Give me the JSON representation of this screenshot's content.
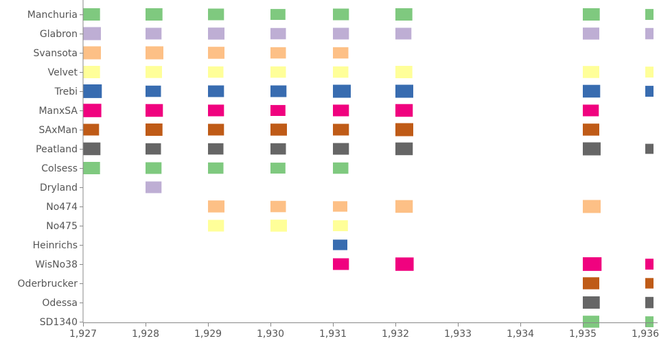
{
  "chart_data": {
    "type": "scatter",
    "title": "",
    "xlabel": "",
    "ylabel": "",
    "xlim": [
      1927,
      1936
    ],
    "x_ticks": [
      {
        "value": 1927,
        "label": "1,927"
      },
      {
        "value": 1928,
        "label": "1,928"
      },
      {
        "value": 1929,
        "label": "1,929"
      },
      {
        "value": 1930,
        "label": "1,930"
      },
      {
        "value": 1931,
        "label": "1,931"
      },
      {
        "value": 1932,
        "label": "1,932"
      },
      {
        "value": 1933,
        "label": "1,933"
      },
      {
        "value": 1934,
        "label": "1,934"
      },
      {
        "value": 1935,
        "label": "1,935"
      },
      {
        "value": 1936,
        "label": "1,936"
      }
    ],
    "categories": [
      "Manchuria",
      "Glabron",
      "Svansota",
      "Velvet",
      "Trebi",
      "ManxSA",
      "SAxMan",
      "Peatland",
      "Colsess",
      "Dryland",
      "No474",
      "No475",
      "Heinrichs",
      "WisNo38",
      "Oderbrucker",
      "Odessa",
      "SD1340"
    ],
    "category_colors": [
      "#7fc97f",
      "#beaed4",
      "#fdc086",
      "#ffff99",
      "#386cb0",
      "#f0027f",
      "#bf5b17",
      "#666666",
      "#7fc97f",
      "#beaed4",
      "#fdc086",
      "#ffff99",
      "#386cb0",
      "#f0027f",
      "#bf5b17",
      "#666666",
      "#7fc97f"
    ],
    "mark_size_unit": "relative",
    "points": [
      {
        "variety": "Manchuria",
        "year": 1927,
        "size": 0.9
      },
      {
        "variety": "Manchuria",
        "year": 1928,
        "size": 0.9
      },
      {
        "variety": "Manchuria",
        "year": 1929,
        "size": 0.8
      },
      {
        "variety": "Manchuria",
        "year": 1930,
        "size": 0.7
      },
      {
        "variety": "Manchuria",
        "year": 1931,
        "size": 0.8
      },
      {
        "variety": "Manchuria",
        "year": 1932,
        "size": 0.9
      },
      {
        "variety": "Manchuria",
        "year": 1935,
        "size": 0.9
      },
      {
        "variety": "Manchuria",
        "year": 1936,
        "size": 0.7
      },
      {
        "variety": "Glabron",
        "year": 1927,
        "size": 1.0
      },
      {
        "variety": "Glabron",
        "year": 1928,
        "size": 0.8
      },
      {
        "variety": "Glabron",
        "year": 1929,
        "size": 0.85
      },
      {
        "variety": "Glabron",
        "year": 1930,
        "size": 0.75
      },
      {
        "variety": "Glabron",
        "year": 1931,
        "size": 0.8
      },
      {
        "variety": "Glabron",
        "year": 1932,
        "size": 0.8
      },
      {
        "variety": "Glabron",
        "year": 1935,
        "size": 0.85
      },
      {
        "variety": "Glabron",
        "year": 1936,
        "size": 0.75
      },
      {
        "variety": "Svansota",
        "year": 1927,
        "size": 1.0
      },
      {
        "variety": "Svansota",
        "year": 1928,
        "size": 1.0
      },
      {
        "variety": "Svansota",
        "year": 1929,
        "size": 0.85
      },
      {
        "variety": "Svansota",
        "year": 1930,
        "size": 0.75
      },
      {
        "variety": "Svansota",
        "year": 1931,
        "size": 0.75
      },
      {
        "variety": "Velvet",
        "year": 1927,
        "size": 0.9
      },
      {
        "variety": "Velvet",
        "year": 1928,
        "size": 0.85
      },
      {
        "variety": "Velvet",
        "year": 1929,
        "size": 0.75
      },
      {
        "variety": "Velvet",
        "year": 1930,
        "size": 0.75
      },
      {
        "variety": "Velvet",
        "year": 1931,
        "size": 0.75
      },
      {
        "variety": "Velvet",
        "year": 1932,
        "size": 0.9
      },
      {
        "variety": "Velvet",
        "year": 1935,
        "size": 0.85
      },
      {
        "variety": "Velvet",
        "year": 1936,
        "size": 0.7
      },
      {
        "variety": "Trebi",
        "year": 1927,
        "size": 1.1
      },
      {
        "variety": "Trebi",
        "year": 1928,
        "size": 0.75
      },
      {
        "variety": "Trebi",
        "year": 1929,
        "size": 0.8
      },
      {
        "variety": "Trebi",
        "year": 1930,
        "size": 0.8
      },
      {
        "variety": "Trebi",
        "year": 1931,
        "size": 1.0
      },
      {
        "variety": "Trebi",
        "year": 1932,
        "size": 1.0
      },
      {
        "variety": "Trebi",
        "year": 1935,
        "size": 0.95
      },
      {
        "variety": "Trebi",
        "year": 1936,
        "size": 0.7
      },
      {
        "variety": "ManxSA",
        "year": 1927,
        "size": 1.05
      },
      {
        "variety": "ManxSA",
        "year": 1928,
        "size": 0.95
      },
      {
        "variety": "ManxSA",
        "year": 1929,
        "size": 0.8
      },
      {
        "variety": "ManxSA",
        "year": 1930,
        "size": 0.7
      },
      {
        "variety": "ManxSA",
        "year": 1931,
        "size": 0.8
      },
      {
        "variety": "ManxSA",
        "year": 1932,
        "size": 0.95
      },
      {
        "variety": "ManxSA",
        "year": 1935,
        "size": 0.8
      },
      {
        "variety": "SAxMan",
        "year": 1927,
        "size": 0.8
      },
      {
        "variety": "SAxMan",
        "year": 1928,
        "size": 0.9
      },
      {
        "variety": "SAxMan",
        "year": 1929,
        "size": 0.8
      },
      {
        "variety": "SAxMan",
        "year": 1930,
        "size": 0.85
      },
      {
        "variety": "SAxMan",
        "year": 1931,
        "size": 0.8
      },
      {
        "variety": "SAxMan",
        "year": 1932,
        "size": 1.0
      },
      {
        "variety": "SAxMan",
        "year": 1935,
        "size": 0.85
      },
      {
        "variety": "Peatland",
        "year": 1927,
        "size": 0.95
      },
      {
        "variety": "Peatland",
        "year": 1928,
        "size": 0.75
      },
      {
        "variety": "Peatland",
        "year": 1929,
        "size": 0.75
      },
      {
        "variety": "Peatland",
        "year": 1930,
        "size": 0.75
      },
      {
        "variety": "Peatland",
        "year": 1931,
        "size": 0.8
      },
      {
        "variety": "Peatland",
        "year": 1932,
        "size": 0.95
      },
      {
        "variety": "Peatland",
        "year": 1935,
        "size": 1.0
      },
      {
        "variety": "Peatland",
        "year": 1936,
        "size": 0.6
      },
      {
        "variety": "Colsess",
        "year": 1927,
        "size": 0.9
      },
      {
        "variety": "Colsess",
        "year": 1928,
        "size": 0.8
      },
      {
        "variety": "Colsess",
        "year": 1929,
        "size": 0.75
      },
      {
        "variety": "Colsess",
        "year": 1930,
        "size": 0.7
      },
      {
        "variety": "Colsess",
        "year": 1931,
        "size": 0.75
      },
      {
        "variety": "Dryland",
        "year": 1928,
        "size": 0.8
      },
      {
        "variety": "No474",
        "year": 1929,
        "size": 0.85
      },
      {
        "variety": "No474",
        "year": 1930,
        "size": 0.75
      },
      {
        "variety": "No474",
        "year": 1931,
        "size": 0.65
      },
      {
        "variety": "No474",
        "year": 1932,
        "size": 0.95
      },
      {
        "variety": "No474",
        "year": 1935,
        "size": 1.0
      },
      {
        "variety": "No475",
        "year": 1929,
        "size": 0.8
      },
      {
        "variety": "No475",
        "year": 1930,
        "size": 0.85
      },
      {
        "variety": "No475",
        "year": 1931,
        "size": 0.7
      },
      {
        "variety": "Heinrichs",
        "year": 1931,
        "size": 0.65
      },
      {
        "variety": "WisNo38",
        "year": 1931,
        "size": 0.8
      },
      {
        "variety": "WisNo38",
        "year": 1932,
        "size": 1.05
      },
      {
        "variety": "WisNo38",
        "year": 1935,
        "size": 1.1
      },
      {
        "variety": "WisNo38",
        "year": 1936,
        "size": 0.7
      },
      {
        "variety": "Oderbrucker",
        "year": 1935,
        "size": 0.85
      },
      {
        "variety": "Oderbrucker",
        "year": 1936,
        "size": 0.65
      },
      {
        "variety": "Odessa",
        "year": 1935,
        "size": 0.9
      },
      {
        "variety": "Odessa",
        "year": 1936,
        "size": 0.75
      },
      {
        "variety": "SD1340",
        "year": 1935,
        "size": 0.85
      },
      {
        "variety": "SD1340",
        "year": 1936,
        "size": 0.7
      }
    ],
    "grid": false,
    "legend": "none"
  }
}
